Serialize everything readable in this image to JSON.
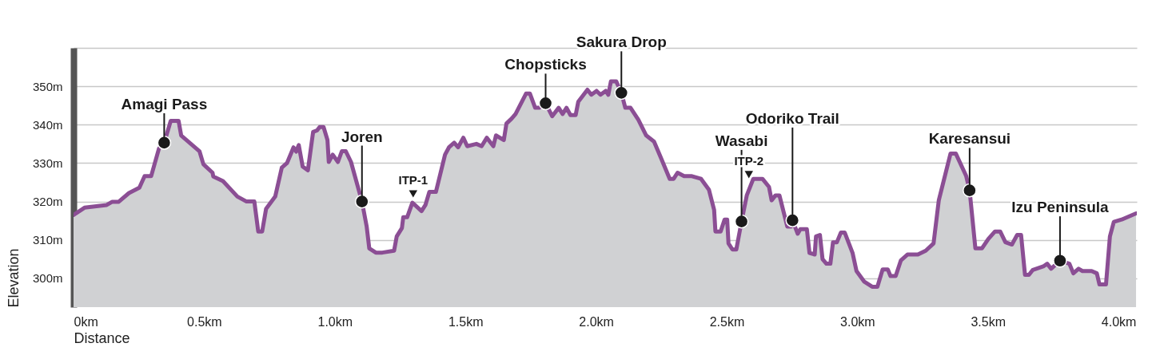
{
  "chart_data": {
    "type": "area",
    "xlabel": "Distance",
    "ylabel": "Elevation",
    "xlim": [
      0,
      4.07
    ],
    "ylim": [
      292.5,
      360
    ],
    "xticks": [
      {
        "value": 0,
        "label": "0km"
      },
      {
        "value": 0.5,
        "label": "0.5km"
      },
      {
        "value": 1,
        "label": "1.0km"
      },
      {
        "value": 1.5,
        "label": "1.5km"
      },
      {
        "value": 2,
        "label": "2.0km"
      },
      {
        "value": 2.5,
        "label": "2.5km"
      },
      {
        "value": 3,
        "label": "3.0km"
      },
      {
        "value": 3.5,
        "label": "3.5km"
      },
      {
        "value": 4,
        "label": "4.0km"
      }
    ],
    "yticks": [
      {
        "value": 300,
        "label": "300m"
      },
      {
        "value": 310,
        "label": "310m"
      },
      {
        "value": 320,
        "label": "320m"
      },
      {
        "value": 330,
        "label": "330m"
      },
      {
        "value": 340,
        "label": "340m"
      },
      {
        "value": 350,
        "label": "350m"
      },
      {
        "value": 360,
        "label": null
      }
    ],
    "grid": "y",
    "line_style": "solid",
    "series": [
      {
        "color": "#8b4e94",
        "x": [
          0,
          0.042,
          0.127,
          0.147,
          0.172,
          0.212,
          0.252,
          0.272,
          0.297,
          0.327,
          0.347,
          0.372,
          0.402,
          0.412,
          0.482,
          0.497,
          0.532,
          0.535,
          0.572,
          0.627,
          0.662,
          0.692,
          0.707,
          0.722,
          0.737,
          0.772,
          0.797,
          0.817,
          0.842,
          0.852,
          0.862,
          0.877,
          0.897,
          0.917,
          0.932,
          0.942,
          0.957,
          0.972,
          0.977,
          0.992,
          1.012,
          1.027,
          1.042,
          1.062,
          1.104,
          1.122,
          1.132,
          1.157,
          1.182,
          1.227,
          1.237,
          1.257,
          1.262,
          1.277,
          1.297,
          1.332,
          1.347,
          1.362,
          1.387,
          1.422,
          1.437,
          1.457,
          1.472,
          1.492,
          1.507,
          1.542,
          1.562,
          1.582,
          1.607,
          1.617,
          1.647,
          1.657,
          1.677,
          1.692,
          1.732,
          1.747,
          1.767,
          1.782,
          1.807,
          1.832,
          1.857,
          1.872,
          1.887,
          1.902,
          1.922,
          1.932,
          1.967,
          1.982,
          2.002,
          2.017,
          2.037,
          2.047,
          2.057,
          2.077,
          2.097,
          2.112,
          2.132,
          2.162,
          2.192,
          2.222,
          2.247,
          2.282,
          2.297,
          2.312,
          2.337,
          2.367,
          2.402,
          2.432,
          2.452,
          2.457,
          2.477,
          2.492,
          2.502,
          2.507,
          2.522,
          2.537,
          2.557,
          2.577,
          2.602,
          2.637,
          2.662,
          2.672,
          2.687,
          2.702,
          2.732,
          2.747,
          2.752,
          2.772,
          2.782,
          2.807,
          2.817,
          2.837,
          2.842,
          2.857,
          2.867,
          2.882,
          2.897,
          2.907,
          2.922,
          2.937,
          2.952,
          2.982,
          2.997,
          3.027,
          3.057,
          3.077,
          3.097,
          3.117,
          3.127,
          3.147,
          3.167,
          3.192,
          3.232,
          3.262,
          3.292,
          3.312,
          3.357,
          3.377,
          3.417,
          3.43,
          3.452,
          3.477,
          3.502,
          3.527,
          3.547,
          3.567,
          3.592,
          3.612,
          3.627,
          3.642,
          3.657,
          3.672,
          3.712,
          3.727,
          3.742,
          3.776,
          3.812,
          3.827,
          3.847,
          3.862,
          3.897,
          3.917,
          3.927,
          3.952,
          3.967,
          3.982,
          4.012,
          4.067
        ],
        "values": [
          316.5,
          318.4,
          319.1,
          319.9,
          319.9,
          322.2,
          323.6,
          326.6,
          326.6,
          333.8,
          335.3,
          341,
          341,
          337.2,
          333.1,
          329.7,
          327.5,
          326.5,
          325.3,
          321.3,
          320,
          320,
          312.2,
          312.2,
          318.1,
          321.3,
          328.8,
          330,
          334.1,
          333,
          334.7,
          329.1,
          328.1,
          338.1,
          338.5,
          339.4,
          339.4,
          336,
          330.3,
          332.2,
          330.3,
          333.1,
          333.1,
          330.3,
          320,
          313.5,
          307.8,
          306.7,
          306.7,
          307.2,
          310.9,
          313.1,
          315.9,
          315.9,
          319.7,
          317.5,
          319.1,
          322.5,
          322.5,
          332.2,
          334.1,
          335.3,
          334.1,
          336.6,
          334.4,
          335,
          334.4,
          336.6,
          334.4,
          337.2,
          336,
          340.3,
          341.6,
          342.8,
          348.1,
          348.1,
          344.4,
          344.4,
          345.6,
          342.2,
          344.4,
          342.8,
          344.4,
          342.5,
          342.5,
          346,
          349.1,
          347.8,
          348.8,
          347.8,
          348.8,
          347.8,
          351.3,
          351.3,
          348.3,
          344.4,
          344.4,
          341.3,
          337.2,
          335.6,
          331.6,
          325.9,
          325.9,
          327.5,
          326.6,
          326.6,
          325.9,
          323.1,
          317.8,
          312.2,
          312.2,
          315.3,
          315.3,
          309.1,
          307.5,
          307.5,
          314.8,
          321.6,
          325.9,
          325.9,
          323.8,
          320.3,
          321.6,
          321.6,
          313.5,
          313.5,
          315.1,
          311.6,
          312.8,
          312.8,
          306.6,
          306.2,
          310.9,
          311.3,
          305,
          303.8,
          303.8,
          309.4,
          309.4,
          311.9,
          311.9,
          306.6,
          301.9,
          299.1,
          297.8,
          297.8,
          302.3,
          302.3,
          300.6,
          300.6,
          304.7,
          306.2,
          306.2,
          307.2,
          309.1,
          320.3,
          332.5,
          332.5,
          326.6,
          322.9,
          307.8,
          307.8,
          310.3,
          312.2,
          312.2,
          309.4,
          308.8,
          311.3,
          311.3,
          300.9,
          300.9,
          302.2,
          303.1,
          303.8,
          302.5,
          304.6,
          303.8,
          301.3,
          302.5,
          301.9,
          301.9,
          301.3,
          298.4,
          298.4,
          310.9,
          314.7,
          315.3,
          316.9
        ]
      },
      {
        "type": "scatter",
        "marker": "circle",
        "color": "#1a1a1a",
        "x": [
          0.347,
          1.104,
          1.807,
          2.097,
          2.557,
          2.752,
          3.43,
          3.776
        ],
        "values": [
          335.3,
          320,
          345.6,
          348.3,
          314.8,
          315.1,
          322.9,
          304.6
        ]
      },
      {
        "type": "scatter",
        "marker": "triangle",
        "color": "#1a1a1a",
        "x": [
          1.3,
          2.585
        ],
        "values": [
          322,
          327
        ]
      }
    ],
    "annotations": [
      {
        "text": "Amagi Pass",
        "x": 0.347,
        "y": 335.3
      },
      {
        "text": "Joren",
        "x": 1.104,
        "y": 320
      },
      {
        "text": "ITP-1",
        "x": 1.3,
        "y": 322
      },
      {
        "text": "Chopsticks",
        "x": 1.807,
        "y": 345.6
      },
      {
        "text": "Sakura Drop",
        "x": 2.097,
        "y": 348.3
      },
      {
        "text": "ITP-2",
        "x": 2.585,
        "y": 327
      },
      {
        "text": "Wasabi",
        "x": 2.557,
        "y": 314.8
      },
      {
        "text": "Odoriko Trail",
        "x": 2.752,
        "y": 315.1
      },
      {
        "text": "Karesansui",
        "x": 3.43,
        "y": 322.9
      },
      {
        "text": "Izu Peninsula",
        "x": 3.776,
        "y": 304.6
      }
    ]
  }
}
